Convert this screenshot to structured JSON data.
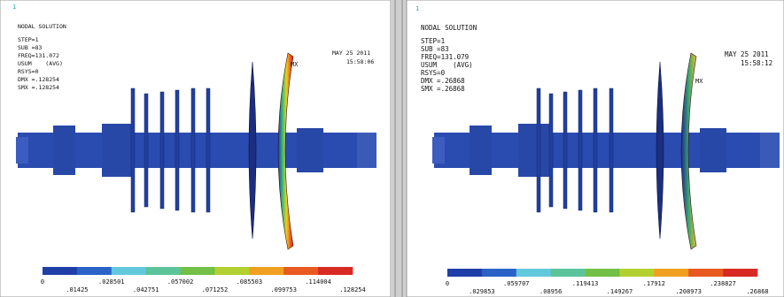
{
  "panels": [
    {
      "index": "1",
      "header": [
        "NODAL SOLUTION",
        "STEP=1",
        "SUB =83",
        "FREQ=131.072",
        "USUM    (AVG)",
        "RSYS=0",
        "DMX =.128254",
        "SMX =.128254"
      ],
      "date": "MAY 25 2011",
      "time": "15:58:06",
      "max_label": "MX",
      "legend_top": [
        "0",
        ".028501",
        ".057002",
        ".085503",
        ".114004"
      ],
      "legend_bottom": [
        ".01425",
        ".042751",
        ".071252",
        ".099753",
        ".128254"
      ]
    },
    {
      "index": "1",
      "header": [
        "NODAL SOLUTION",
        "STEP=1",
        "SUB =83",
        "FREQ=131.079",
        "USUM    (AVG)",
        "RSYS=0",
        "DMX =.26868",
        "SMX =.26868"
      ],
      "date": "MAY 25 2011",
      "time": "15:58:12",
      "max_label": "MX",
      "legend_top": [
        "0",
        ".059707",
        ".119413",
        ".17912",
        ".238827"
      ],
      "legend_bottom": [
        ".029853",
        ".08956",
        ".149267",
        ".208973",
        ".26868"
      ]
    }
  ]
}
